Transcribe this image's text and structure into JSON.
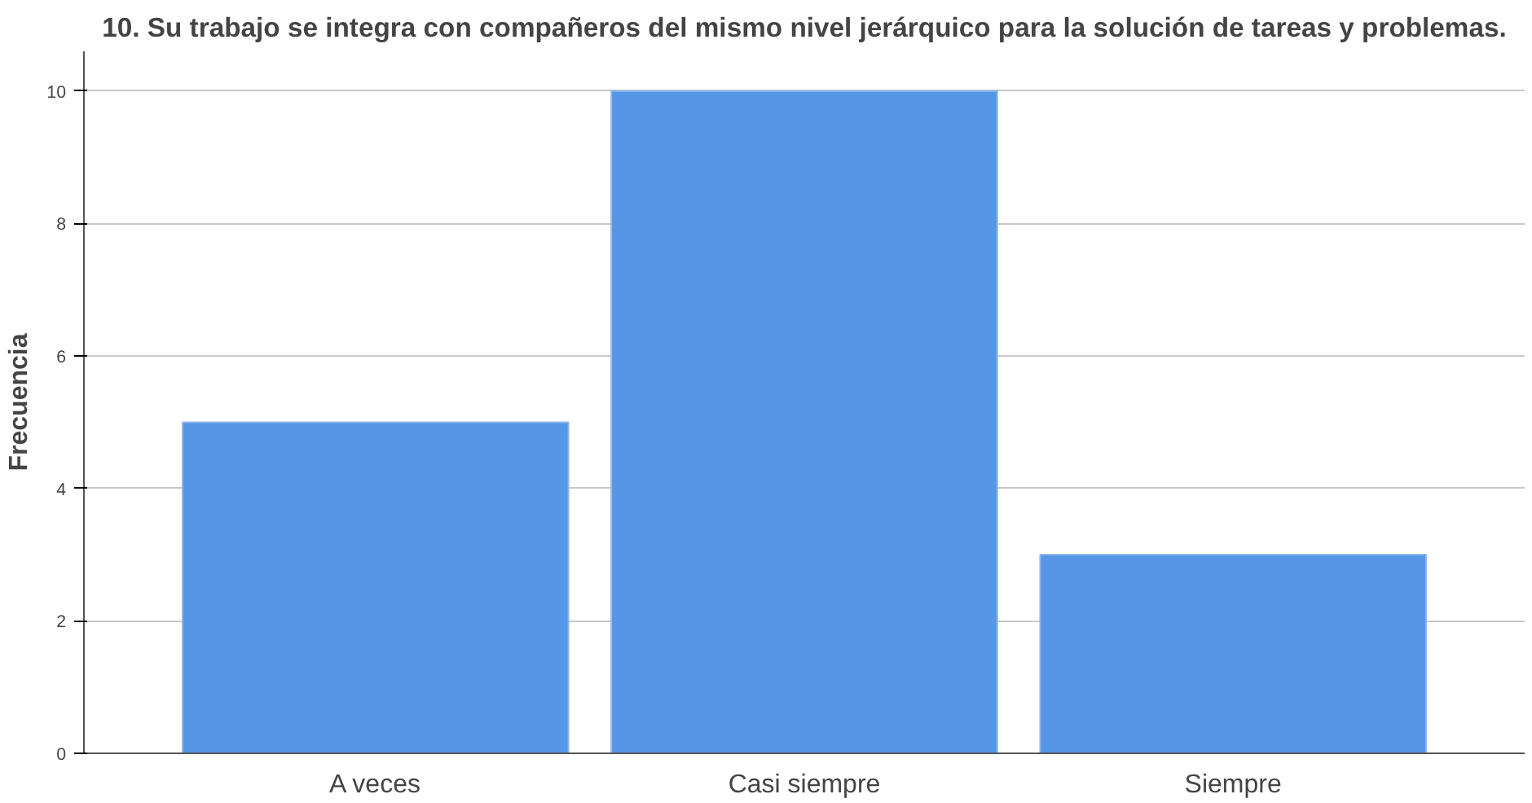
{
  "chart_data": {
    "type": "bar",
    "title": "10. Su trabajo se integra con compañeros del mismo nivel jerárquico para la solución de tareas y problemas.",
    "ylabel": "Frecuencia",
    "categories": [
      "A veces",
      "Casi siempre",
      "Siempre"
    ],
    "values": [
      5,
      10,
      3
    ],
    "color": "#5596e6",
    "ylim": [
      0,
      10.6
    ],
    "yticks": [
      0,
      2,
      4,
      6,
      8,
      10
    ],
    "grid": "y"
  }
}
